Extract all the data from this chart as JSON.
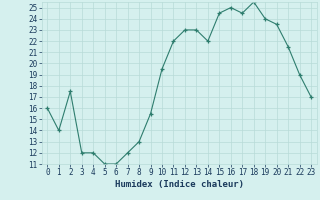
{
  "x": [
    0,
    1,
    2,
    3,
    4,
    5,
    6,
    7,
    8,
    9,
    10,
    11,
    12,
    13,
    14,
    15,
    16,
    17,
    18,
    19,
    20,
    21,
    22,
    23
  ],
  "y": [
    16,
    14,
    17.5,
    12,
    12,
    11,
    11,
    12,
    13,
    15.5,
    19.5,
    22,
    23,
    23,
    22,
    24.5,
    25,
    24.5,
    25.5,
    24,
    23.5,
    21.5,
    19,
    17
  ],
  "title": "",
  "xlabel": "Humidex (Indice chaleur)",
  "ylabel": "",
  "xlim": [
    -0.5,
    23.5
  ],
  "ylim": [
    11,
    25.5
  ],
  "yticks": [
    11,
    12,
    13,
    14,
    15,
    16,
    17,
    18,
    19,
    20,
    21,
    22,
    23,
    24,
    25
  ],
  "xticks": [
    0,
    1,
    2,
    3,
    4,
    5,
    6,
    7,
    8,
    9,
    10,
    11,
    12,
    13,
    14,
    15,
    16,
    17,
    18,
    19,
    20,
    21,
    22,
    23
  ],
  "line_color": "#2e7d6e",
  "marker_color": "#2e7d6e",
  "bg_color": "#d5f0ee",
  "grid_color": "#b8dbd8",
  "axis_label_color": "#1a3a5c",
  "tick_label_color": "#1a3a5c",
  "xlabel_fontsize": 6.5,
  "tick_fontsize": 5.5
}
